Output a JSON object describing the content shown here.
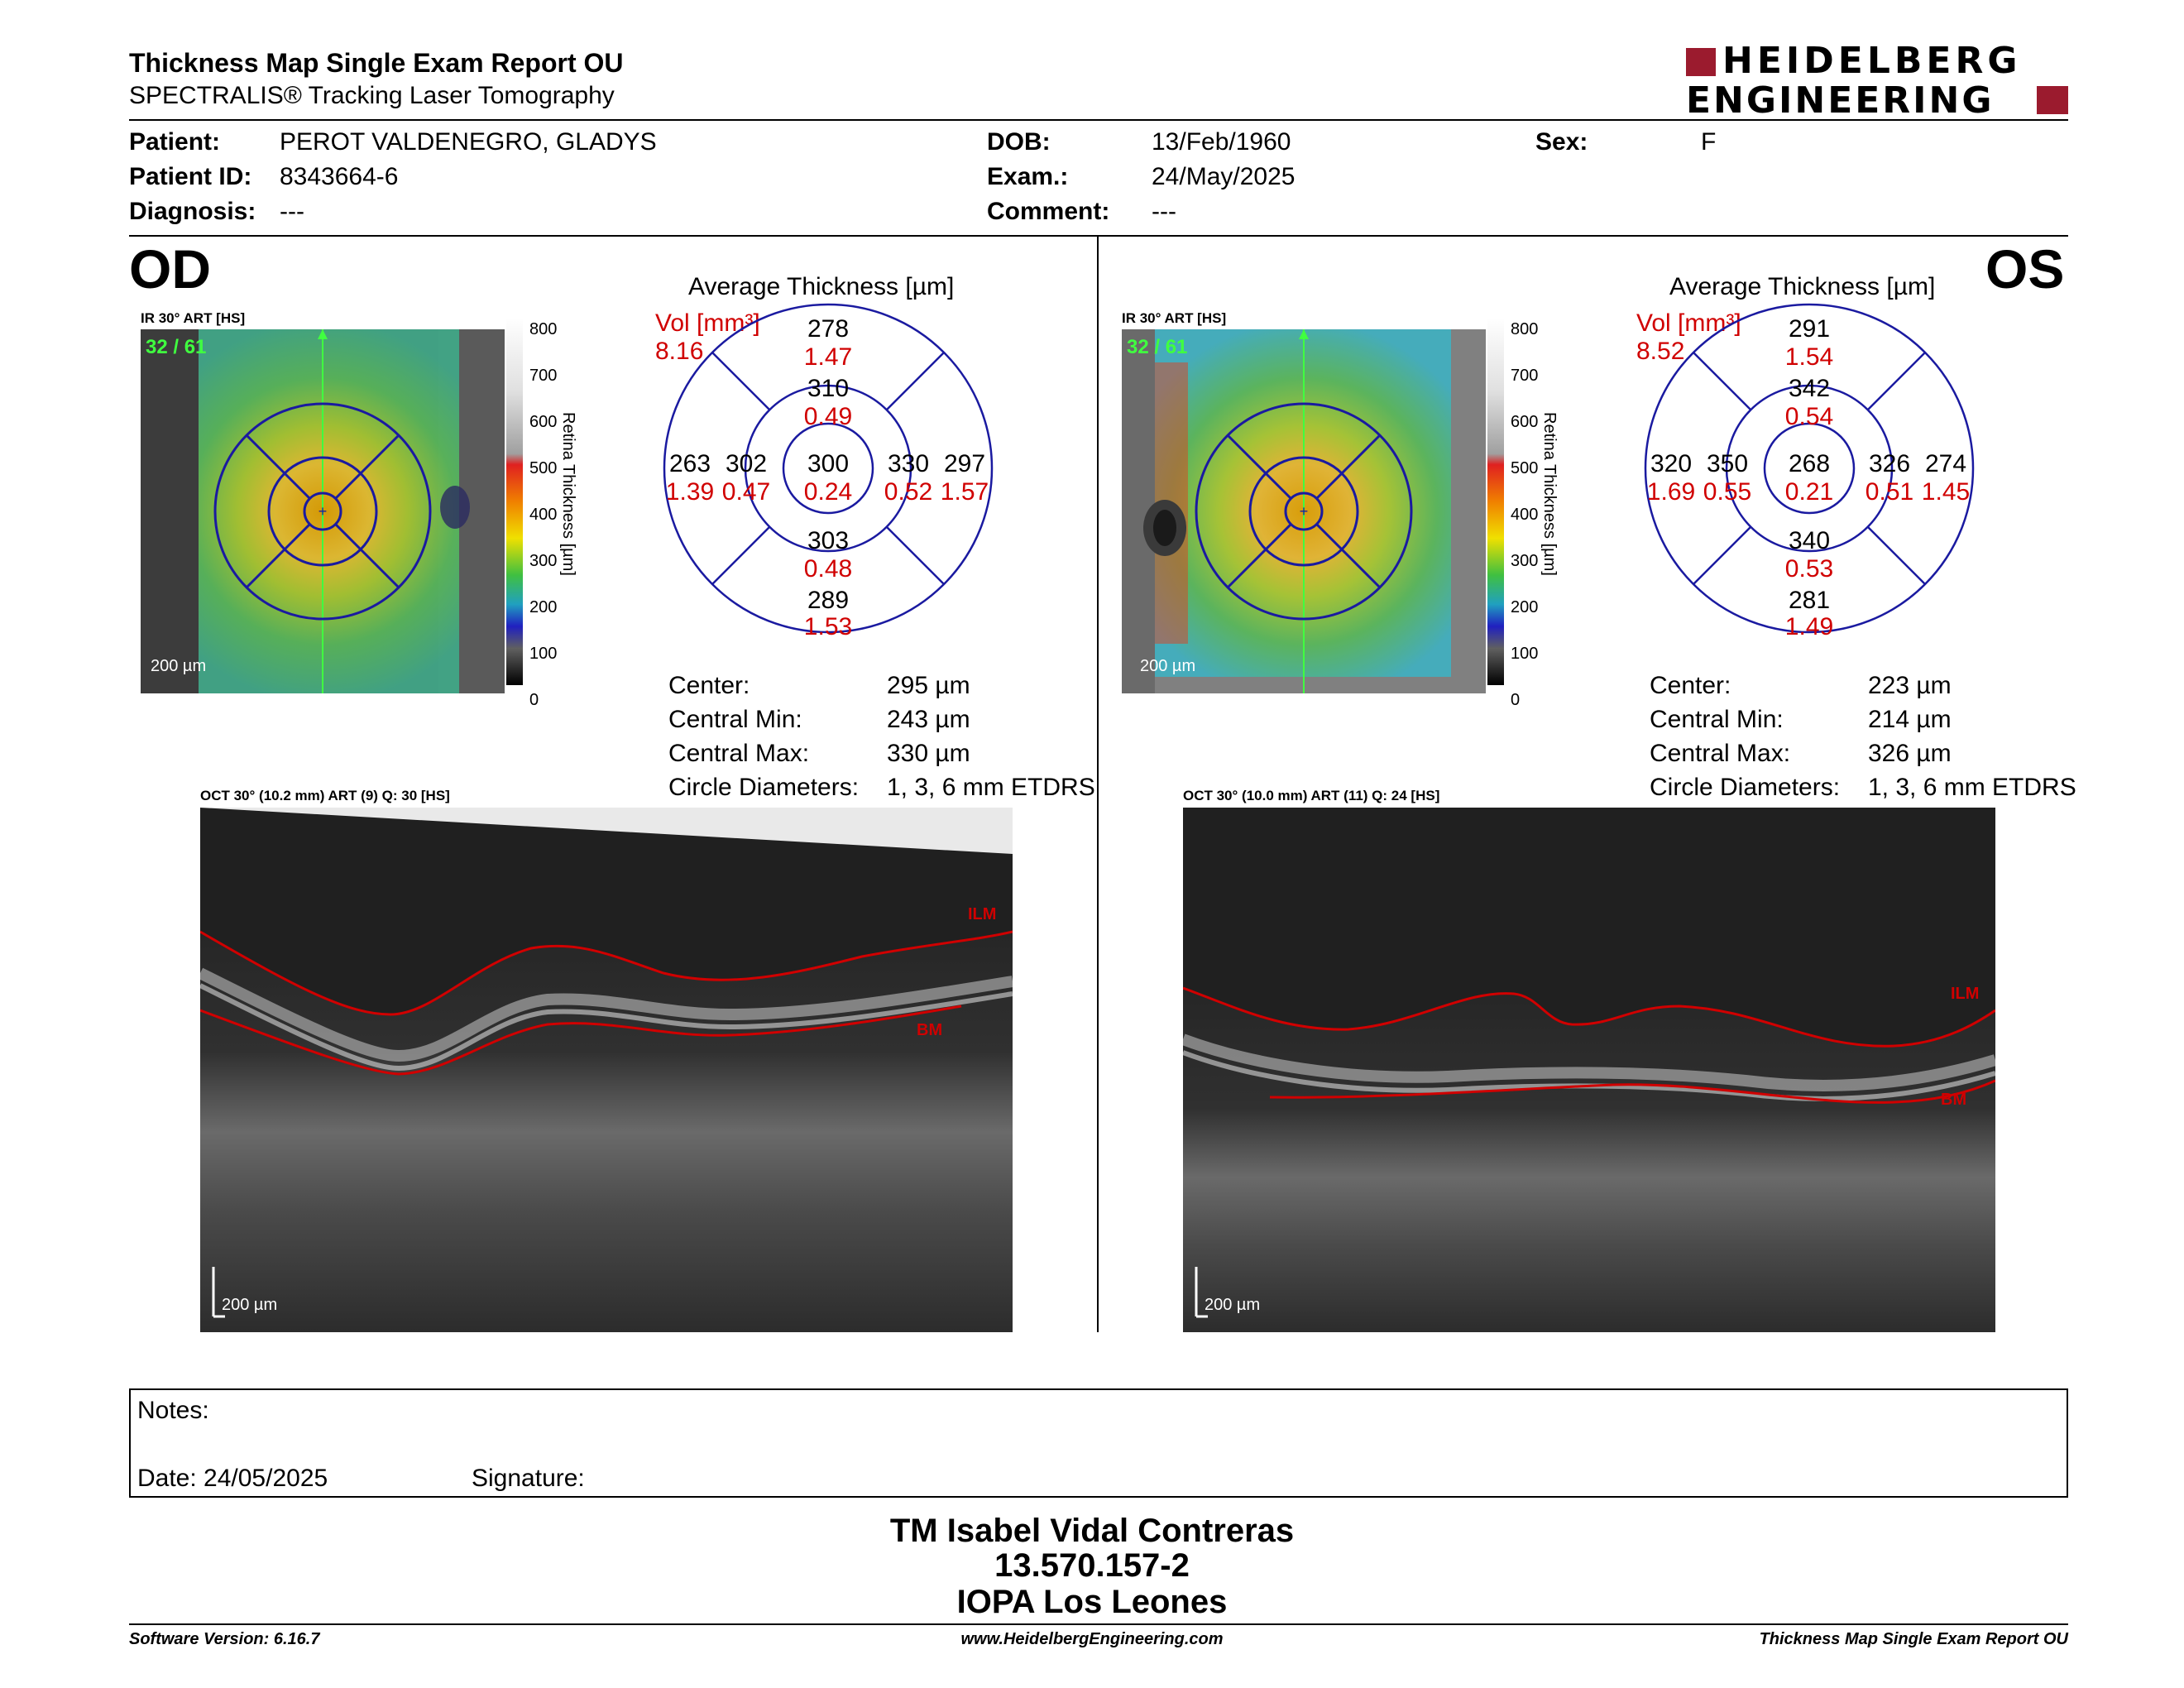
{
  "header": {
    "title": "Thickness Map Single Exam Report OU",
    "subtitle": "SPECTRALIS® Tracking Laser Tomography",
    "logo_line1": "HEIDELBERG",
    "logo_line2": "ENGINEERING"
  },
  "patient": {
    "patient_label": "Patient:",
    "patient_value": "PEROT VALDENEGRO, GLADYS",
    "id_label": "Patient ID:",
    "id_value": "8343664-6",
    "diagnosis_label": "Diagnosis:",
    "diagnosis_value": "---",
    "dob_label": "DOB:",
    "dob_value": "13/Feb/1960",
    "exam_label": "Exam.:",
    "exam_value": "24/May/2025",
    "comment_label": "Comment:",
    "comment_value": "---",
    "sex_label": "Sex:",
    "sex_value": "F"
  },
  "od": {
    "eye": "OD",
    "ir_label": "IR 30° ART [HS]",
    "frame_counter": "32 / 61",
    "ir_scale": "200 µm",
    "colorbar_title": "Retina Thickness [µm]",
    "colorbar_ticks": [
      "800",
      "700",
      "600",
      "500",
      "400",
      "300",
      "200",
      "100",
      "0"
    ],
    "avg_title": "Average Thickness [µm]",
    "vol_label": "Vol [mm³]",
    "vol_value": "8.16",
    "etdrs": {
      "outer_sup": {
        "t": "278",
        "v": "1.47"
      },
      "inner_sup": {
        "t": "310",
        "v": "0.49"
      },
      "outer_left": {
        "t": "263",
        "v": "1.39"
      },
      "inner_left": {
        "t": "302",
        "v": "0.47"
      },
      "center": {
        "t": "300",
        "v": "0.24"
      },
      "inner_right": {
        "t": "330",
        "v": "0.52"
      },
      "outer_right": {
        "t": "297",
        "v": "1.57"
      },
      "inner_inf": {
        "t": "303",
        "v": "0.48"
      },
      "outer_inf": {
        "t": "289",
        "v": "1.53"
      }
    },
    "stats": [
      {
        "label": "Center:",
        "value": "295 µm"
      },
      {
        "label": "Central Min:",
        "value": "243 µm"
      },
      {
        "label": "Central Max:",
        "value": "330 µm"
      },
      {
        "label": "Circle Diameters:",
        "value": "1, 3, 6 mm ETDRS"
      }
    ],
    "oct_label": "OCT 30° (10.2 mm) ART (9) Q: 30 [HS]",
    "ilm": "ILM",
    "bm": "BM",
    "oct_scale": "200 µm"
  },
  "os": {
    "eye": "OS",
    "ir_label": "IR 30° ART [HS]",
    "frame_counter": "32 / 61",
    "ir_scale": "200 µm",
    "colorbar_title": "Retina Thickness [µm]",
    "colorbar_ticks": [
      "800",
      "700",
      "600",
      "500",
      "400",
      "300",
      "200",
      "100",
      "0"
    ],
    "avg_title": "Average Thickness [µm]",
    "vol_label": "Vol [mm³]",
    "vol_value": "8.52",
    "etdrs": {
      "outer_sup": {
        "t": "291",
        "v": "1.54"
      },
      "inner_sup": {
        "t": "342",
        "v": "0.54"
      },
      "outer_left": {
        "t": "320",
        "v": "1.69"
      },
      "inner_left": {
        "t": "350",
        "v": "0.55"
      },
      "center": {
        "t": "268",
        "v": "0.21"
      },
      "inner_right": {
        "t": "326",
        "v": "0.51"
      },
      "outer_right": {
        "t": "274",
        "v": "1.45"
      },
      "inner_inf": {
        "t": "340",
        "v": "0.53"
      },
      "outer_inf": {
        "t": "281",
        "v": "1.49"
      }
    },
    "stats": [
      {
        "label": "Center:",
        "value": "223 µm"
      },
      {
        "label": "Central Min:",
        "value": "214 µm"
      },
      {
        "label": "Central Max:",
        "value": "326 µm"
      },
      {
        "label": "Circle Diameters:",
        "value": "1, 3, 6 mm ETDRS"
      }
    ],
    "oct_label": "OCT 30° (10.0 mm) ART (11) Q: 24 [HS]",
    "ilm": "ILM",
    "bm": "BM",
    "oct_scale": "200 µm"
  },
  "notes": {
    "notes_label": "Notes:",
    "date_label": "Date: 24/05/2025",
    "signature_label": "Signature:"
  },
  "signer": {
    "name": "TM Isabel Vidal Contreras",
    "id": "13.570.157-2",
    "org": "IOPA Los Leones"
  },
  "footer": {
    "software": "Software Version: 6.16.7",
    "website": "www.HeidelbergEngineering.com",
    "report": "Thickness Map Single Exam Report OU"
  },
  "colors": {
    "logo_red": "#9b1b2e",
    "vol_red": "#d00000",
    "grid_blue": "#1a1aa0",
    "ilm_red": "#c00000"
  }
}
